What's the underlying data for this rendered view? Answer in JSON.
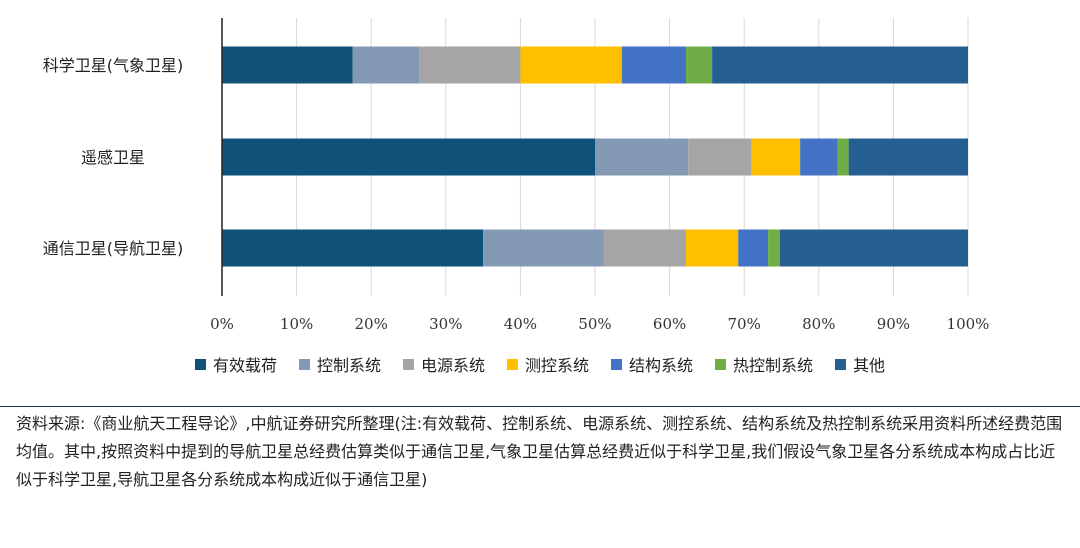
{
  "chart_data": {
    "type": "bar",
    "orientation": "horizontal",
    "stacked": true,
    "percent": true,
    "categories": [
      "通信卫星(导航卫星)",
      "遥感卫星",
      "科学卫星(气象卫星)"
    ],
    "series": [
      {
        "name": "有效载荷",
        "color": "#0f5179",
        "values": [
          35,
          50,
          17.5
        ]
      },
      {
        "name": "控制系统",
        "color": "#8499b4",
        "values": [
          16.2,
          12.5,
          9
        ]
      },
      {
        "name": "电源系统",
        "color": "#a5a5a5",
        "values": [
          11,
          8.5,
          13.5
        ]
      },
      {
        "name": "测控系统",
        "color": "#ffc000",
        "values": [
          7,
          6.5,
          13.6
        ]
      },
      {
        "name": "结构系统",
        "color": "#4472c4",
        "values": [
          4,
          5,
          8.6
        ]
      },
      {
        "name": "热控制系统",
        "color": "#70ad47",
        "values": [
          1.6,
          1.5,
          3.5
        ]
      },
      {
        "name": "其他",
        "color": "#255e91",
        "values": [
          25.2,
          16,
          34.3
        ]
      }
    ],
    "x_ticks": [
      "0%",
      "10%",
      "20%",
      "30%",
      "40%",
      "50%",
      "60%",
      "70%",
      "80%",
      "90%",
      "100%"
    ],
    "xlim": [
      0,
      100
    ],
    "grid": true,
    "legend_position": "bottom"
  },
  "footnote": {
    "text": "资料来源:《商业航天工程导论》,中航证券研究所整理(注:有效载荷、控制系统、电源系统、测控系统、结构系统及热控制系统采用资料所述经费范围均值。其中,按照资料中提到的导航卫星总经费估算类似于通信卫星,气象卫星估算总经费近似于科学卫星,我们假设气象卫星各分系统成本构成占比近似于科学卫星,导航卫星各分系统成本构成近似于通信卫星)"
  }
}
